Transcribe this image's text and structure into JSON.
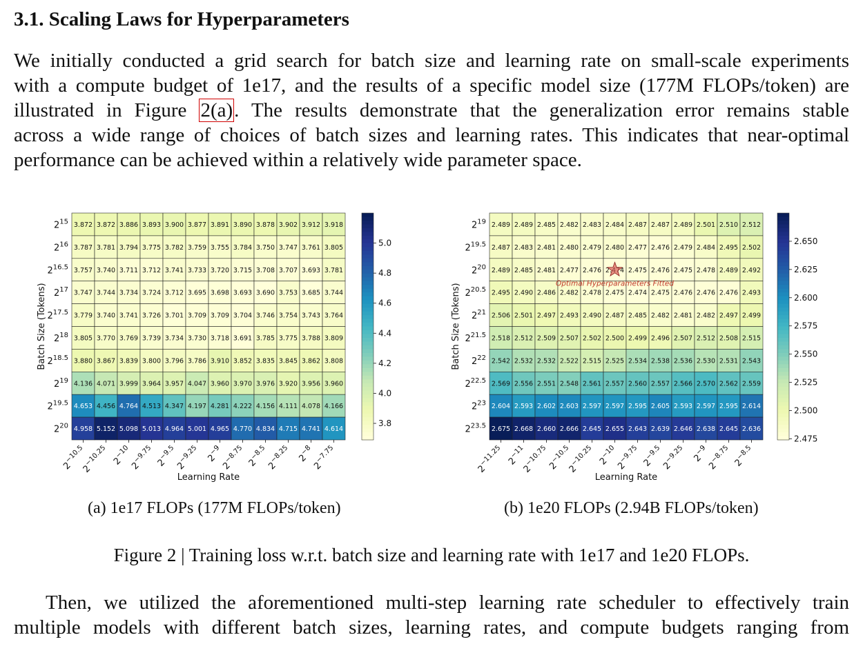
{
  "section": {
    "title": "3.1.  Scaling Laws for Hyperparameters"
  },
  "intro": {
    "lines": [
      "We initially conducted a grid search for batch size and learning rate on small-scale experiments",
      "with a compute budget of 1e17, and the results of a specific model size (177M FLOPs/token) are",
      "illustrated in Figure ",
      "across a wide range of choices of batch sizes and learning rates. This indicates that near-optimal",
      "performance can be achieved within a relatively wide parameter space."
    ],
    "fig_ref": "2(a)",
    "line3_rest": ". The results demonstrate that the generalization error remains stable"
  },
  "figure": {
    "caption": "Figure 2 | Training loss w.r.t. batch size and learning rate with 1e17 and 1e20 FLOPs.",
    "subcaption_a": "(a)  1e17 FLOPs (177M FLOPs/token)",
    "subcaption_b": "(b)  1e20 FLOPs (2.94B FLOPs/token)"
  },
  "outro": {
    "lines": [
      "Then, we utilized the aforementioned multi-step learning rate scheduler to effectively train",
      "multiple models with different batch sizes, learning rates, and compute budgets ranging from"
    ]
  },
  "chart_data": [
    {
      "type": "heatmap",
      "xlabel": "Learning Rate",
      "ylabel": "Batch Size (Tokens)",
      "x_exponents": [
        "-10.5",
        "-10.25",
        "-10",
        "-9.75",
        "-9.5",
        "-9.25",
        "-9",
        "-8.75",
        "-8.5",
        "-8.25",
        "-8",
        "-7.75"
      ],
      "y_exponents": [
        "15",
        "16",
        "16.5",
        "17",
        "17.5",
        "18",
        "18.5",
        "19",
        "19.5",
        "20"
      ],
      "colorbar_ticks": [
        3.8,
        4.0,
        4.2,
        4.4,
        4.6,
        4.8,
        5.0
      ],
      "vmin": 3.69,
      "vmax": 5.2,
      "values": [
        [
          3.872,
          3.872,
          3.886,
          3.893,
          3.9,
          3.877,
          3.891,
          3.89,
          3.878,
          3.902,
          3.912,
          3.918
        ],
        [
          3.787,
          3.781,
          3.794,
          3.775,
          3.782,
          3.759,
          3.755,
          3.784,
          3.75,
          3.747,
          3.761,
          3.805
        ],
        [
          3.757,
          3.74,
          3.711,
          3.712,
          3.741,
          3.733,
          3.72,
          3.715,
          3.708,
          3.707,
          3.693,
          3.781
        ],
        [
          3.747,
          3.744,
          3.734,
          3.724,
          3.712,
          3.695,
          3.698,
          3.693,
          3.69,
          3.753,
          3.685,
          3.744
        ],
        [
          3.779,
          3.74,
          3.741,
          3.726,
          3.701,
          3.709,
          3.709,
          3.704,
          3.746,
          3.754,
          3.743,
          3.764
        ],
        [
          3.805,
          3.77,
          3.769,
          3.739,
          3.734,
          3.73,
          3.718,
          3.691,
          3.785,
          3.775,
          3.788,
          3.809
        ],
        [
          3.88,
          3.867,
          3.839,
          3.8,
          3.796,
          3.786,
          3.91,
          3.852,
          3.835,
          3.845,
          3.862,
          3.808
        ],
        [
          4.136,
          4.071,
          3.999,
          3.964,
          3.957,
          4.047,
          3.96,
          3.97,
          3.976,
          3.92,
          3.956,
          3.96
        ],
        [
          4.653,
          4.456,
          4.764,
          4.513,
          4.347,
          4.197,
          4.281,
          4.222,
          4.156,
          4.111,
          4.078,
          4.166
        ],
        [
          4.958,
          5.152,
          5.098,
          5.013,
          4.964,
          5.001,
          4.965,
          4.77,
          4.834,
          4.715,
          4.741,
          4.614
        ]
      ]
    },
    {
      "type": "heatmap",
      "xlabel": "Learning Rate",
      "ylabel": "Batch Size (Tokens)",
      "x_exponents": [
        "-11.25",
        "-11",
        "-10.75",
        "-10.5",
        "-10.25",
        "-10",
        "-9.75",
        "-9.5",
        "-9.25",
        "-9",
        "-8.75",
        "-8.5"
      ],
      "y_exponents": [
        "19",
        "19.5",
        "20",
        "20.5",
        "21",
        "21.5",
        "22",
        "22.5",
        "23",
        "23.5"
      ],
      "colorbar_ticks": [
        2.475,
        2.5,
        2.525,
        2.55,
        2.575,
        2.6,
        2.625,
        2.65
      ],
      "colorbar_tick_labels": [
        "2.475",
        "2.500",
        "2.525",
        "2.550",
        "2.575",
        "2.600",
        "2.625",
        "2.650"
      ],
      "vmin": 2.474,
      "vmax": 2.675,
      "annotation": {
        "label": "Optimal Hyperparameters Fitted",
        "row": 2,
        "col": 5
      },
      "values": [
        [
          2.489,
          2.489,
          2.485,
          2.482,
          2.483,
          2.484,
          2.487,
          2.487,
          2.489,
          2.501,
          2.51,
          2.512
        ],
        [
          2.487,
          2.483,
          2.481,
          2.48,
          2.479,
          2.48,
          2.477,
          2.476,
          2.479,
          2.484,
          2.495,
          2.502
        ],
        [
          2.489,
          2.485,
          2.481,
          2.477,
          2.476,
          2.474,
          2.475,
          2.476,
          2.475,
          2.478,
          2.489,
          2.492
        ],
        [
          2.495,
          2.49,
          2.486,
          2.482,
          2.478,
          2.475,
          2.474,
          2.475,
          2.476,
          2.476,
          2.476,
          2.493
        ],
        [
          2.506,
          2.501,
          2.497,
          2.493,
          2.49,
          2.487,
          2.485,
          2.482,
          2.481,
          2.482,
          2.497,
          2.499
        ],
        [
          2.518,
          2.512,
          2.509,
          2.507,
          2.502,
          2.5,
          2.499,
          2.496,
          2.507,
          2.512,
          2.508,
          2.515
        ],
        [
          2.542,
          2.532,
          2.532,
          2.522,
          2.515,
          2.525,
          2.534,
          2.538,
          2.536,
          2.53,
          2.531,
          2.543
        ],
        [
          2.569,
          2.556,
          2.551,
          2.548,
          2.561,
          2.557,
          2.56,
          2.557,
          2.566,
          2.57,
          2.562,
          2.559
        ],
        [
          2.604,
          2.593,
          2.602,
          2.603,
          2.597,
          2.597,
          2.595,
          2.605,
          2.593,
          2.597,
          2.595,
          2.614
        ],
        [
          2.675,
          2.668,
          2.66,
          2.666,
          2.645,
          2.655,
          2.643,
          2.639,
          2.646,
          2.638,
          2.645,
          2.636
        ]
      ]
    }
  ]
}
